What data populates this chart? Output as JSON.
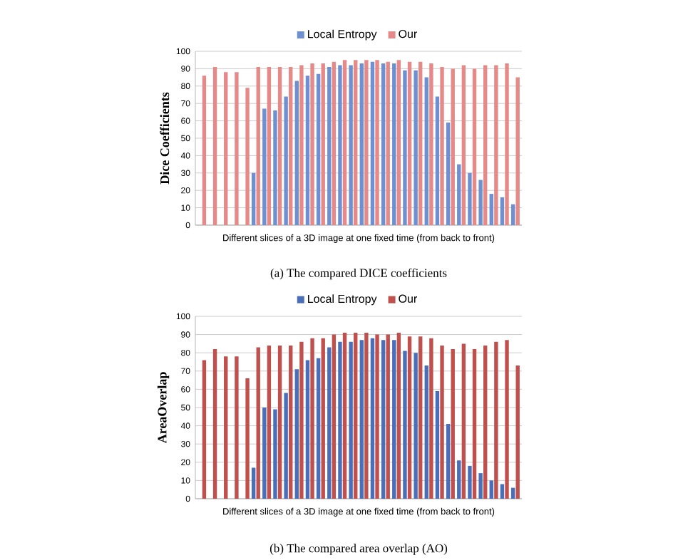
{
  "chart_data": [
    {
      "type": "bar",
      "ylabel": "Dice Coefficients",
      "xlabel": "Different slices of a 3D image at one fixed time (from back to front)",
      "categories": [
        null,
        null,
        null,
        null,
        null,
        null,
        null,
        null,
        null,
        null,
        null,
        null,
        null,
        null,
        null,
        null,
        null,
        null,
        null,
        null,
        null,
        null,
        null,
        null,
        null,
        null,
        null,
        null,
        null,
        null
      ],
      "series": [
        {
          "name": "Local Entropy",
          "color": "#6f90d0",
          "values": [
            0,
            0,
            0,
            0,
            0,
            30,
            67,
            66,
            74,
            83,
            86,
            87,
            91,
            92,
            92,
            93,
            94,
            93,
            93,
            89,
            89,
            85,
            74,
            59,
            35,
            30,
            26,
            18,
            16,
            12
          ]
        },
        {
          "name": "Our",
          "color": "#e58a88",
          "values": [
            86,
            91,
            88,
            88,
            79,
            91,
            91,
            91,
            91,
            92,
            93,
            93,
            94,
            95,
            95,
            95,
            95,
            94,
            95,
            94,
            94,
            93,
            91,
            90,
            92,
            90,
            92,
            92,
            93,
            85
          ]
        }
      ],
      "ylim": [
        0,
        100
      ],
      "yticks": [
        0,
        10,
        20,
        30,
        40,
        50,
        60,
        70,
        80,
        90,
        100
      ],
      "grid": "y",
      "legend": "top",
      "tick_labels": "y",
      "annotations": [
        "(a) The compared DICE coefficients"
      ]
    },
    {
      "type": "bar",
      "ylabel": "AreaOverlap",
      "xlabel": "Different slices of a 3D image at one fixed time (from back to front)",
      "categories": [
        null,
        null,
        null,
        null,
        null,
        null,
        null,
        null,
        null,
        null,
        null,
        null,
        null,
        null,
        null,
        null,
        null,
        null,
        null,
        null,
        null,
        null,
        null,
        null,
        null,
        null,
        null,
        null,
        null,
        null
      ],
      "series": [
        {
          "name": "Local Entropy",
          "color": "#4a6fb8",
          "values": [
            0,
            0,
            0,
            0,
            0,
            17,
            50,
            49,
            58,
            71,
            76,
            77,
            83,
            86,
            86,
            87,
            88,
            87,
            87,
            81,
            80,
            73,
            59,
            41,
            21,
            18,
            14,
            10,
            8,
            6
          ]
        },
        {
          "name": "Our",
          "color": "#c0504d",
          "values": [
            76,
            82,
            78,
            78,
            66,
            83,
            84,
            84,
            84,
            86,
            88,
            88,
            90,
            91,
            91,
            91,
            90,
            90,
            91,
            89,
            89,
            88,
            84,
            82,
            85,
            82,
            84,
            86,
            87,
            73
          ]
        }
      ],
      "ylim": [
        0,
        100
      ],
      "yticks": [
        0,
        10,
        20,
        30,
        40,
        50,
        60,
        70,
        80,
        90,
        100
      ],
      "grid": "y",
      "legend": "top",
      "tick_labels": "y",
      "annotations": [
        "(b) The compared area overlap (AO)"
      ]
    }
  ]
}
